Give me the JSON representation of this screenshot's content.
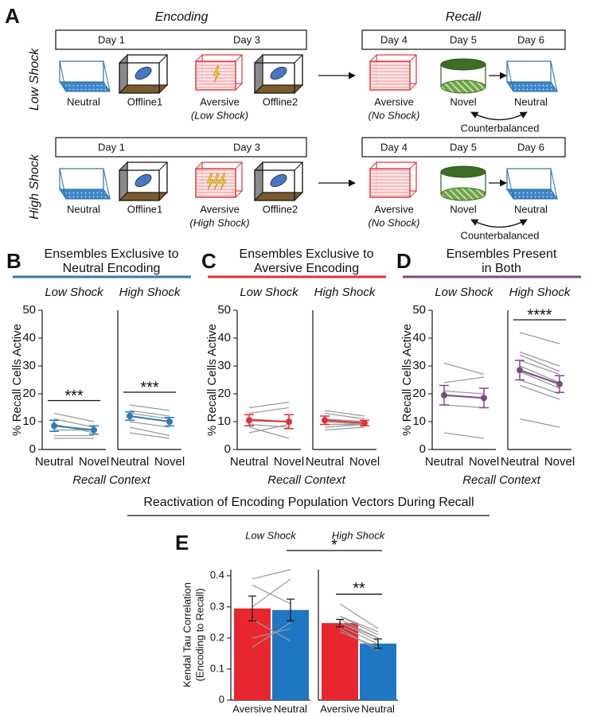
{
  "diagram": {
    "letter": "A",
    "encoding_title": "Encoding",
    "recall_title": "Recall",
    "rows": [
      {
        "label": "Low Shock",
        "encoding_days": [
          "Day 1",
          "Day 3"
        ],
        "recall_days": [
          "Day 4",
          "Day 5",
          "Day 6"
        ],
        "encoding_contexts": [
          {
            "label": "Neutral"
          },
          {
            "label": "Offline1"
          },
          {
            "label": "Aversive",
            "note": "(Low Shock)"
          },
          {
            "label": "Offline2"
          }
        ],
        "recall_contexts": [
          {
            "label": "Aversive",
            "note": "(No Shock)"
          },
          {
            "label": "Novel"
          },
          {
            "label": "Neutral"
          }
        ],
        "counterbalance": "Counterbalanced"
      },
      {
        "label": "High Shock",
        "encoding_days": [
          "Day 1",
          "Day 3"
        ],
        "recall_days": [
          "Day 4",
          "Day 5",
          "Day 6"
        ],
        "encoding_contexts": [
          {
            "label": "Neutral"
          },
          {
            "label": "Offline1"
          },
          {
            "label": "Aversive",
            "note": "(High Shock)"
          },
          {
            "label": "Offline2"
          }
        ],
        "recall_contexts": [
          {
            "label": "Aversive",
            "note": "(No Shock)"
          },
          {
            "label": "Novel"
          },
          {
            "label": "Neutral"
          }
        ],
        "counterbalance": "Counterbalanced"
      }
    ]
  },
  "panels": [
    {
      "letter": "B",
      "title": [
        "Ensembles Exclusive to",
        "Neutral Encoding"
      ],
      "x_label": "Recall Context",
      "color": "#2b7bba"
    },
    {
      "letter": "C",
      "title": [
        "Ensembles Exclusive to",
        "Aversive Encoding"
      ],
      "x_label": "Recall Context",
      "color": "#e0323a"
    },
    {
      "letter": "D",
      "title": [
        "Ensembles Present",
        "in Both"
      ],
      "x_label": "Recall Context",
      "color": "#7e4a82"
    }
  ],
  "panel_e": {
    "letter": "E",
    "title": "Reactivation of Encoding Population Vectors During Recall",
    "y_label": [
      "Kendal Tau Correlation",
      "(Encoding to Recall)"
    ],
    "annotation": "*"
  },
  "chart_data": [
    {
      "type": "line",
      "title": "Low Shock",
      "categories": [
        "Neutral",
        "Novel"
      ],
      "y_label": "% Recall Cells Active",
      "ylim": [
        0,
        50
      ],
      "yticks": [
        0,
        10,
        20,
        30,
        40,
        50
      ],
      "annotation": "***",
      "series": [
        {
          "color": "#9a9a9a",
          "values": [
            13,
            10
          ]
        },
        {
          "color": "#9a9a9a",
          "values": [
            11,
            8
          ]
        },
        {
          "color": "#9a9a9a",
          "values": [
            9,
            6
          ]
        },
        {
          "color": "#9a9a9a",
          "values": [
            7,
            7
          ]
        },
        {
          "color": "#9a9a9a",
          "values": [
            5,
            5
          ]
        },
        {
          "color": "#9a9a9a",
          "values": [
            4,
            4
          ]
        },
        {
          "color": "#2b7bba",
          "values": [
            8.5,
            7
          ],
          "errors": [
            2,
            1.5
          ]
        }
      ]
    },
    {
      "type": "line",
      "title": "High Shock",
      "categories": [
        "Neutral",
        "Novel"
      ],
      "ylim": [
        0,
        50
      ],
      "annotation": "***",
      "series": [
        {
          "color": "#9a9a9a",
          "values": [
            16,
            14
          ]
        },
        {
          "color": "#9a9a9a",
          "values": [
            14,
            12
          ]
        },
        {
          "color": "#9a9a9a",
          "values": [
            13,
            11
          ]
        },
        {
          "color": "#9a9a9a",
          "values": [
            12,
            10
          ]
        },
        {
          "color": "#9a9a9a",
          "values": [
            10,
            8
          ]
        },
        {
          "color": "#9a9a9a",
          "values": [
            8,
            5
          ]
        },
        {
          "color": "#9a9a9a",
          "values": [
            6,
            4
          ]
        },
        {
          "color": "#2b7bba",
          "values": [
            12,
            10
          ],
          "errors": [
            1.5,
            1.5
          ]
        }
      ]
    },
    {
      "type": "line",
      "title": "Low Shock",
      "categories": [
        "Neutral",
        "Novel"
      ],
      "y_label": "% Recall Cells Active",
      "ylim": [
        0,
        50
      ],
      "yticks": [
        0,
        10,
        20,
        30,
        40,
        50
      ],
      "series": [
        {
          "color": "#9a9a9a",
          "values": [
            15,
            17
          ]
        },
        {
          "color": "#9a9a9a",
          "values": [
            13,
            15
          ]
        },
        {
          "color": "#9a9a9a",
          "values": [
            11,
            10
          ]
        },
        {
          "color": "#9a9a9a",
          "values": [
            9,
            8
          ]
        },
        {
          "color": "#9a9a9a",
          "values": [
            8,
            4
          ]
        },
        {
          "color": "#9a9a9a",
          "values": [
            6,
            9
          ]
        },
        {
          "color": "#e0323a",
          "values": [
            10.5,
            10
          ],
          "errors": [
            2,
            2.5
          ]
        }
      ]
    },
    {
      "type": "line",
      "title": "High Shock",
      "categories": [
        "Neutral",
        "Novel"
      ],
      "ylim": [
        0,
        50
      ],
      "series": [
        {
          "color": "#9a9a9a",
          "values": [
            14,
            12
          ]
        },
        {
          "color": "#9a9a9a",
          "values": [
            13,
            11
          ]
        },
        {
          "color": "#9a9a9a",
          "values": [
            11,
            10
          ]
        },
        {
          "color": "#9a9a9a",
          "values": [
            10,
            9
          ]
        },
        {
          "color": "#9a9a9a",
          "values": [
            9,
            9
          ]
        },
        {
          "color": "#9a9a9a",
          "values": [
            8,
            9
          ]
        },
        {
          "color": "#9a9a9a",
          "values": [
            7,
            8
          ]
        },
        {
          "color": "#e0323a",
          "values": [
            10.5,
            9.5
          ],
          "errors": [
            1.5,
            1
          ]
        }
      ]
    },
    {
      "type": "line",
      "title": "Low Shock",
      "categories": [
        "Neutral",
        "Novel"
      ],
      "y_label": "% Recall Cells Active",
      "ylim": [
        0,
        50
      ],
      "yticks": [
        0,
        10,
        20,
        30,
        40,
        50
      ],
      "series": [
        {
          "color": "#9a9a9a",
          "values": [
            31,
            27
          ]
        },
        {
          "color": "#9a9a9a",
          "values": [
            24,
            26
          ]
        },
        {
          "color": "#9a9a9a",
          "values": [
            21,
            20
          ]
        },
        {
          "color": "#9a9a9a",
          "values": [
            16,
            15
          ]
        },
        {
          "color": "#9a9a9a",
          "values": [
            6,
            4
          ]
        },
        {
          "color": "#7e4a82",
          "values": [
            19.5,
            18.5
          ],
          "errors": [
            3.5,
            3.5
          ]
        }
      ]
    },
    {
      "type": "line",
      "title": "High Shock",
      "categories": [
        "Neutral",
        "Novel"
      ],
      "ylim": [
        0,
        50
      ],
      "annotation": "****",
      "series": [
        {
          "color": "#9a9a9a",
          "values": [
            42,
            38
          ]
        },
        {
          "color": "#9a9a9a",
          "values": [
            35,
            30
          ]
        },
        {
          "color": "#9a9a9a",
          "values": [
            34,
            28
          ]
        },
        {
          "color": "#9a9a9a",
          "values": [
            32,
            27
          ]
        },
        {
          "color": "#9a9a9a",
          "values": [
            30,
            24
          ]
        },
        {
          "color": "#9a9a9a",
          "values": [
            28,
            22
          ]
        },
        {
          "color": "#9a9a9a",
          "values": [
            25,
            20
          ]
        },
        {
          "color": "#9a9a9a",
          "values": [
            23,
            18
          ]
        },
        {
          "color": "#9a9a9a",
          "values": [
            11,
            8
          ]
        },
        {
          "color": "#7e4a82",
          "values": [
            28.5,
            23.5
          ],
          "errors": [
            3.5,
            3
          ]
        }
      ]
    },
    {
      "type": "bar",
      "title": "Low Shock",
      "categories": [
        "Aversive",
        "Neutral"
      ],
      "values": [
        0.295,
        0.29
      ],
      "errors": [
        0.04,
        0.035
      ],
      "colors": [
        "#e8262f",
        "#1f77c4"
      ],
      "ylim": [
        0,
        0.42
      ],
      "yticks": [
        0,
        0.1,
        0.2,
        0.3,
        0.4
      ],
      "series": [
        {
          "color": "#9a9a9a",
          "values": [
            0.39,
            0.42
          ]
        },
        {
          "color": "#9a9a9a",
          "values": [
            0.37,
            0.31
          ]
        },
        {
          "color": "#9a9a9a",
          "values": [
            0.3,
            0.39
          ]
        },
        {
          "color": "#9a9a9a",
          "values": [
            0.26,
            0.19
          ]
        },
        {
          "color": "#9a9a9a",
          "values": [
            0.2,
            0.23
          ]
        },
        {
          "color": "#9a9a9a",
          "values": [
            0.17,
            0.25
          ]
        }
      ]
    },
    {
      "type": "bar",
      "title": "High Shock",
      "categories": [
        "Aversive",
        "Neutral"
      ],
      "values": [
        0.248,
        0.182
      ],
      "errors": [
        0.012,
        0.015
      ],
      "colors": [
        "#e8262f",
        "#1f77c4"
      ],
      "ylim": [
        0,
        0.42
      ],
      "annotation": "**",
      "series": [
        {
          "color": "#9a9a9a",
          "values": [
            0.31,
            0.23
          ]
        },
        {
          "color": "#9a9a9a",
          "values": [
            0.27,
            0.22
          ]
        },
        {
          "color": "#9a9a9a",
          "values": [
            0.26,
            0.2
          ]
        },
        {
          "color": "#9a9a9a",
          "values": [
            0.25,
            0.19
          ]
        },
        {
          "color": "#9a9a9a",
          "values": [
            0.24,
            0.18
          ]
        },
        {
          "color": "#9a9a9a",
          "values": [
            0.25,
            0.2
          ]
        },
        {
          "color": "#9a9a9a",
          "values": [
            0.23,
            0.16
          ]
        },
        {
          "color": "#9a9a9a",
          "values": [
            0.22,
            0.17
          ]
        },
        {
          "color": "#9a9a9a",
          "values": [
            0.27,
            0.21
          ]
        }
      ]
    }
  ]
}
